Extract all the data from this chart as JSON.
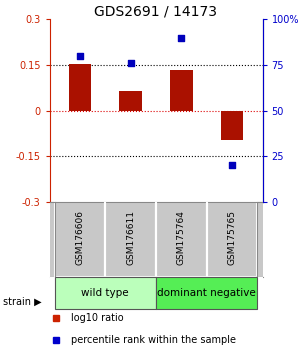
{
  "title": "GDS2691 / 14173",
  "samples": [
    "GSM176606",
    "GSM176611",
    "GSM175764",
    "GSM175765"
  ],
  "log10_ratio": [
    0.152,
    0.065,
    0.135,
    -0.098
  ],
  "percentile_rank": [
    80,
    76,
    90,
    20
  ],
  "ylim_left": [
    -0.3,
    0.3
  ],
  "ylim_right": [
    0,
    100
  ],
  "yticks_left": [
    -0.3,
    -0.15,
    0,
    0.15,
    0.3
  ],
  "yticks_right": [
    0,
    25,
    50,
    75,
    100
  ],
  "hlines": [
    -0.15,
    0.0,
    0.15
  ],
  "hline_colors": [
    "#000000",
    "#dd0000",
    "#000000"
  ],
  "hline_styles": [
    "dotted",
    "dotted",
    "dotted"
  ],
  "bar_color": "#aa1100",
  "scatter_color": "#0000bb",
  "left_axis_color": "#cc2200",
  "right_axis_color": "#0000cc",
  "strain_groups": [
    {
      "label": "wild type",
      "indices": [
        0,
        1
      ],
      "color": "#bbffbb"
    },
    {
      "label": "dominant negative",
      "indices": [
        2,
        3
      ],
      "color": "#55ee55"
    }
  ],
  "sample_bg_color": "#c8c8c8",
  "bar_width": 0.45,
  "legend_items": [
    {
      "color": "#cc2200",
      "label": "log10 ratio"
    },
    {
      "color": "#0000cc",
      "label": "percentile rank within the sample"
    }
  ],
  "title_fontsize": 10
}
